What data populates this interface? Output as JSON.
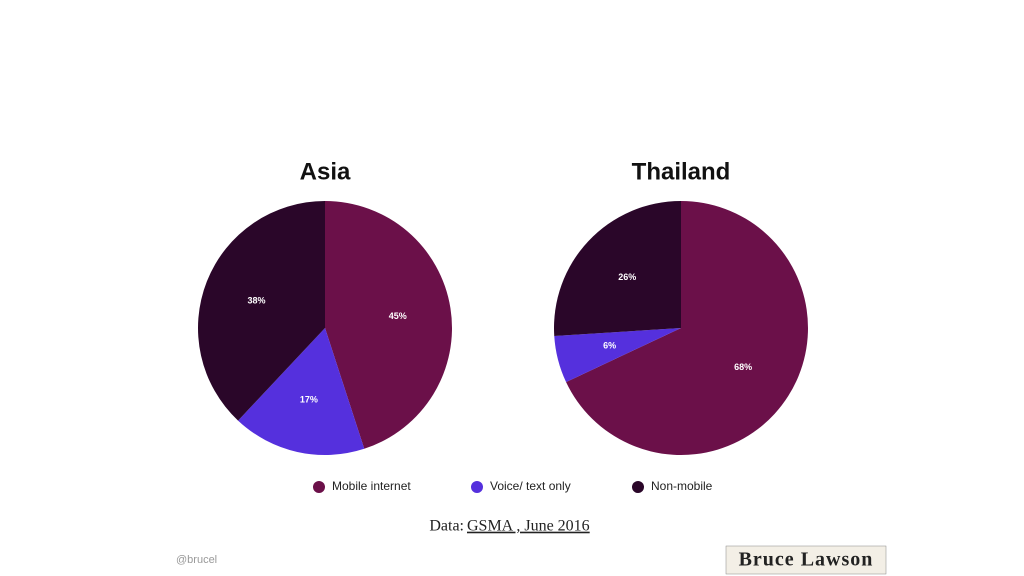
{
  "chart_data": [
    {
      "type": "pie",
      "title": "Asia",
      "categories": [
        "Mobile internet",
        "Voice/ text only",
        "Non-mobile"
      ],
      "values": [
        45,
        17,
        38
      ],
      "value_labels": [
        "45%",
        "17%",
        "38%"
      ],
      "colors": [
        "#6b1049",
        "#5530dd",
        "#2a0629"
      ]
    },
    {
      "type": "pie",
      "title": "Thailand",
      "categories": [
        "Mobile internet",
        "Voice/ text only",
        "Non-mobile"
      ],
      "values": [
        68,
        6,
        26
      ],
      "value_labels": [
        "68%",
        "6%",
        "26%"
      ],
      "colors": [
        "#6b1049",
        "#5530dd",
        "#2a0629"
      ]
    }
  ],
  "source_prefix": "Data:",
  "source_link": "GSMA , June 2016",
  "handle": "@brucel",
  "logo": "Bruce Lawson"
}
